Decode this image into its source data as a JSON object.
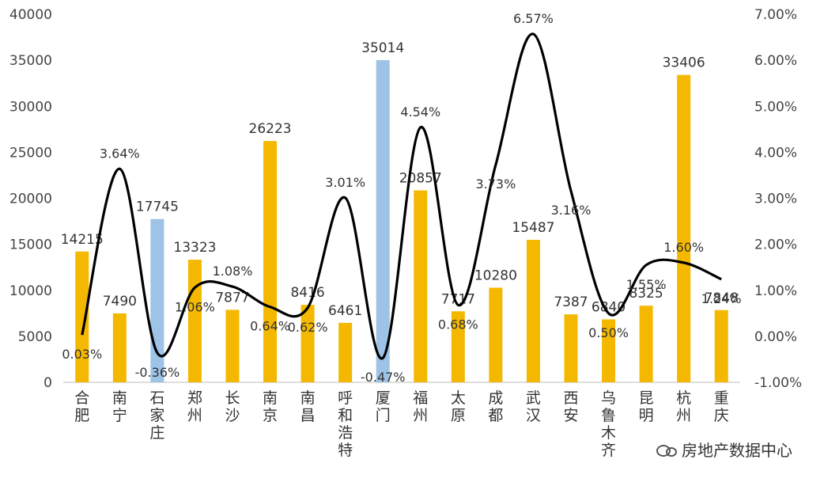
{
  "chart_data": {
    "type": "bar",
    "categories": [
      "合肥",
      "南宁",
      "石家庄",
      "郑州",
      "长沙",
      "南京",
      "南昌",
      "呼和浩特",
      "厦门",
      "福州",
      "太原",
      "成都",
      "武汉",
      "西安",
      "乌鲁木齐",
      "昆明",
      "杭州",
      "重庆"
    ],
    "series": [
      {
        "values": [
          14215,
          7490,
          17745,
          13323,
          7877,
          26223,
          8416,
          6461,
          35014,
          20857,
          7717,
          10280,
          15487,
          7387,
          6840,
          8325,
          33406,
          7848
        ],
        "axis": "left",
        "colors": [
          "#f5b800",
          "#f5b800",
          "#9dc3e6",
          "#f5b800",
          "#f5b800",
          "#f5b800",
          "#f5b800",
          "#f5b800",
          "#9dc3e6",
          "#f5b800",
          "#f5b800",
          "#f5b800",
          "#f5b800",
          "#f5b800",
          "#f5b800",
          "#f5b800",
          "#f5b800",
          "#f5b800"
        ]
      },
      {
        "type": "line",
        "axis": "right",
        "values": [
          0.03,
          3.64,
          -0.36,
          1.06,
          1.08,
          0.64,
          0.62,
          3.01,
          -0.47,
          4.54,
          0.68,
          3.73,
          6.57,
          3.16,
          0.5,
          1.55,
          1.6,
          1.24
        ],
        "labels": [
          "0.03%",
          "3.64%",
          "-0.36%",
          "1.06%",
          "1.08%",
          "0.64%",
          "0.62%",
          "3.01%",
          "-0.47%",
          "4.54%",
          "0.68%",
          "3.73%",
          "6.57%",
          "3.16%",
          "0.50%",
          "1.55%",
          "1.60%",
          "1.24%"
        ],
        "color": "#000000"
      }
    ],
    "left_axis": {
      "ylim": [
        0,
        40000
      ],
      "ticks": [
        "0",
        "5000",
        "10000",
        "15000",
        "20000",
        "25000",
        "30000",
        "35000",
        "40000"
      ]
    },
    "right_axis": {
      "ylim": [
        -1.0,
        7.0
      ],
      "ticks": [
        "-1.00%",
        "0.00%",
        "1.00%",
        "2.00%",
        "3.00%",
        "4.00%",
        "5.00%",
        "6.00%",
        "7.00%"
      ]
    },
    "title": "",
    "grid": false,
    "legend": "none"
  },
  "watermark": {
    "text": "房地产数据中心",
    "icon": "wechat-icon"
  }
}
